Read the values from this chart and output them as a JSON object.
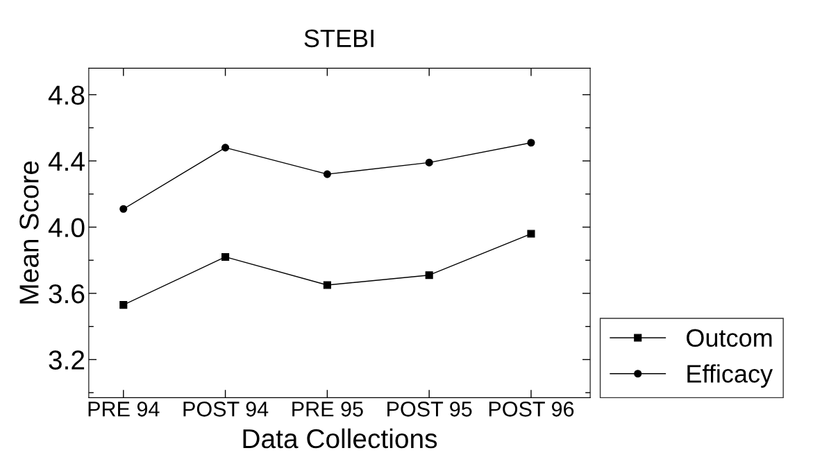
{
  "chart_data": {
    "type": "line",
    "title": "STEBI",
    "xlabel": "Data Collections",
    "ylabel": "Mean Score",
    "categories": [
      "PRE 94",
      "POST 94",
      "PRE 95",
      "POST 95",
      "POST 96"
    ],
    "series": [
      {
        "name": "Outcom",
        "color": "#000000",
        "marker": "square",
        "values": [
          3.53,
          3.82,
          3.65,
          3.71,
          3.96
        ]
      },
      {
        "name": "Efficacy",
        "color": "#000000",
        "marker": "circle",
        "values": [
          4.11,
          4.48,
          4.32,
          4.39,
          4.51
        ]
      }
    ],
    "ylim": [
      2.97,
      4.96
    ],
    "yticks": [
      3.2,
      3.6,
      {
        "value": 4.0,
        "label": "4.0"
      },
      4.4,
      4.8
    ],
    "grid": false,
    "legend": "bottom right",
    "line_style": "solid"
  }
}
